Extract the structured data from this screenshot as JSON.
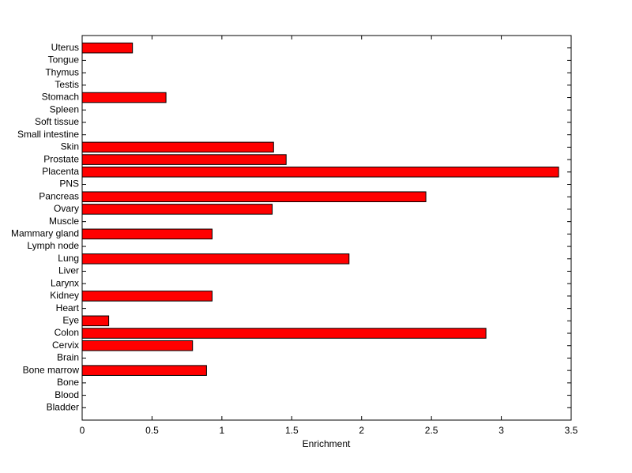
{
  "chart_data": {
    "type": "barh",
    "xlabel": "Enrichment",
    "categories": [
      "Bladder",
      "Blood",
      "Bone",
      "Bone marrow",
      "Brain",
      "Cervix",
      "Colon",
      "Eye",
      "Heart",
      "Kidney",
      "Larynx",
      "Liver",
      "Lung",
      "Lymph node",
      "Mammary gland",
      "Muscle",
      "Ovary",
      "Pancreas",
      "PNS",
      "Placenta",
      "Prostate",
      "Skin",
      "Small intestine",
      "Soft tissue",
      "Spleen",
      "Stomach",
      "Testis",
      "Thymus",
      "Tongue",
      "Uterus"
    ],
    "values": [
      0,
      0,
      0,
      0.89,
      0,
      0.79,
      2.89,
      0.19,
      0,
      0.93,
      0,
      0,
      1.91,
      0,
      0.93,
      0,
      1.36,
      2.46,
      0,
      3.41,
      1.46,
      1.37,
      0,
      0,
      0,
      0.6,
      0,
      0,
      0,
      0.36
    ],
    "color": "#ff0000",
    "xlim": [
      0,
      3.5
    ],
    "xticks": [
      0,
      0.5,
      1,
      1.5,
      2,
      2.5,
      3,
      3.5
    ],
    "grid": false
  }
}
